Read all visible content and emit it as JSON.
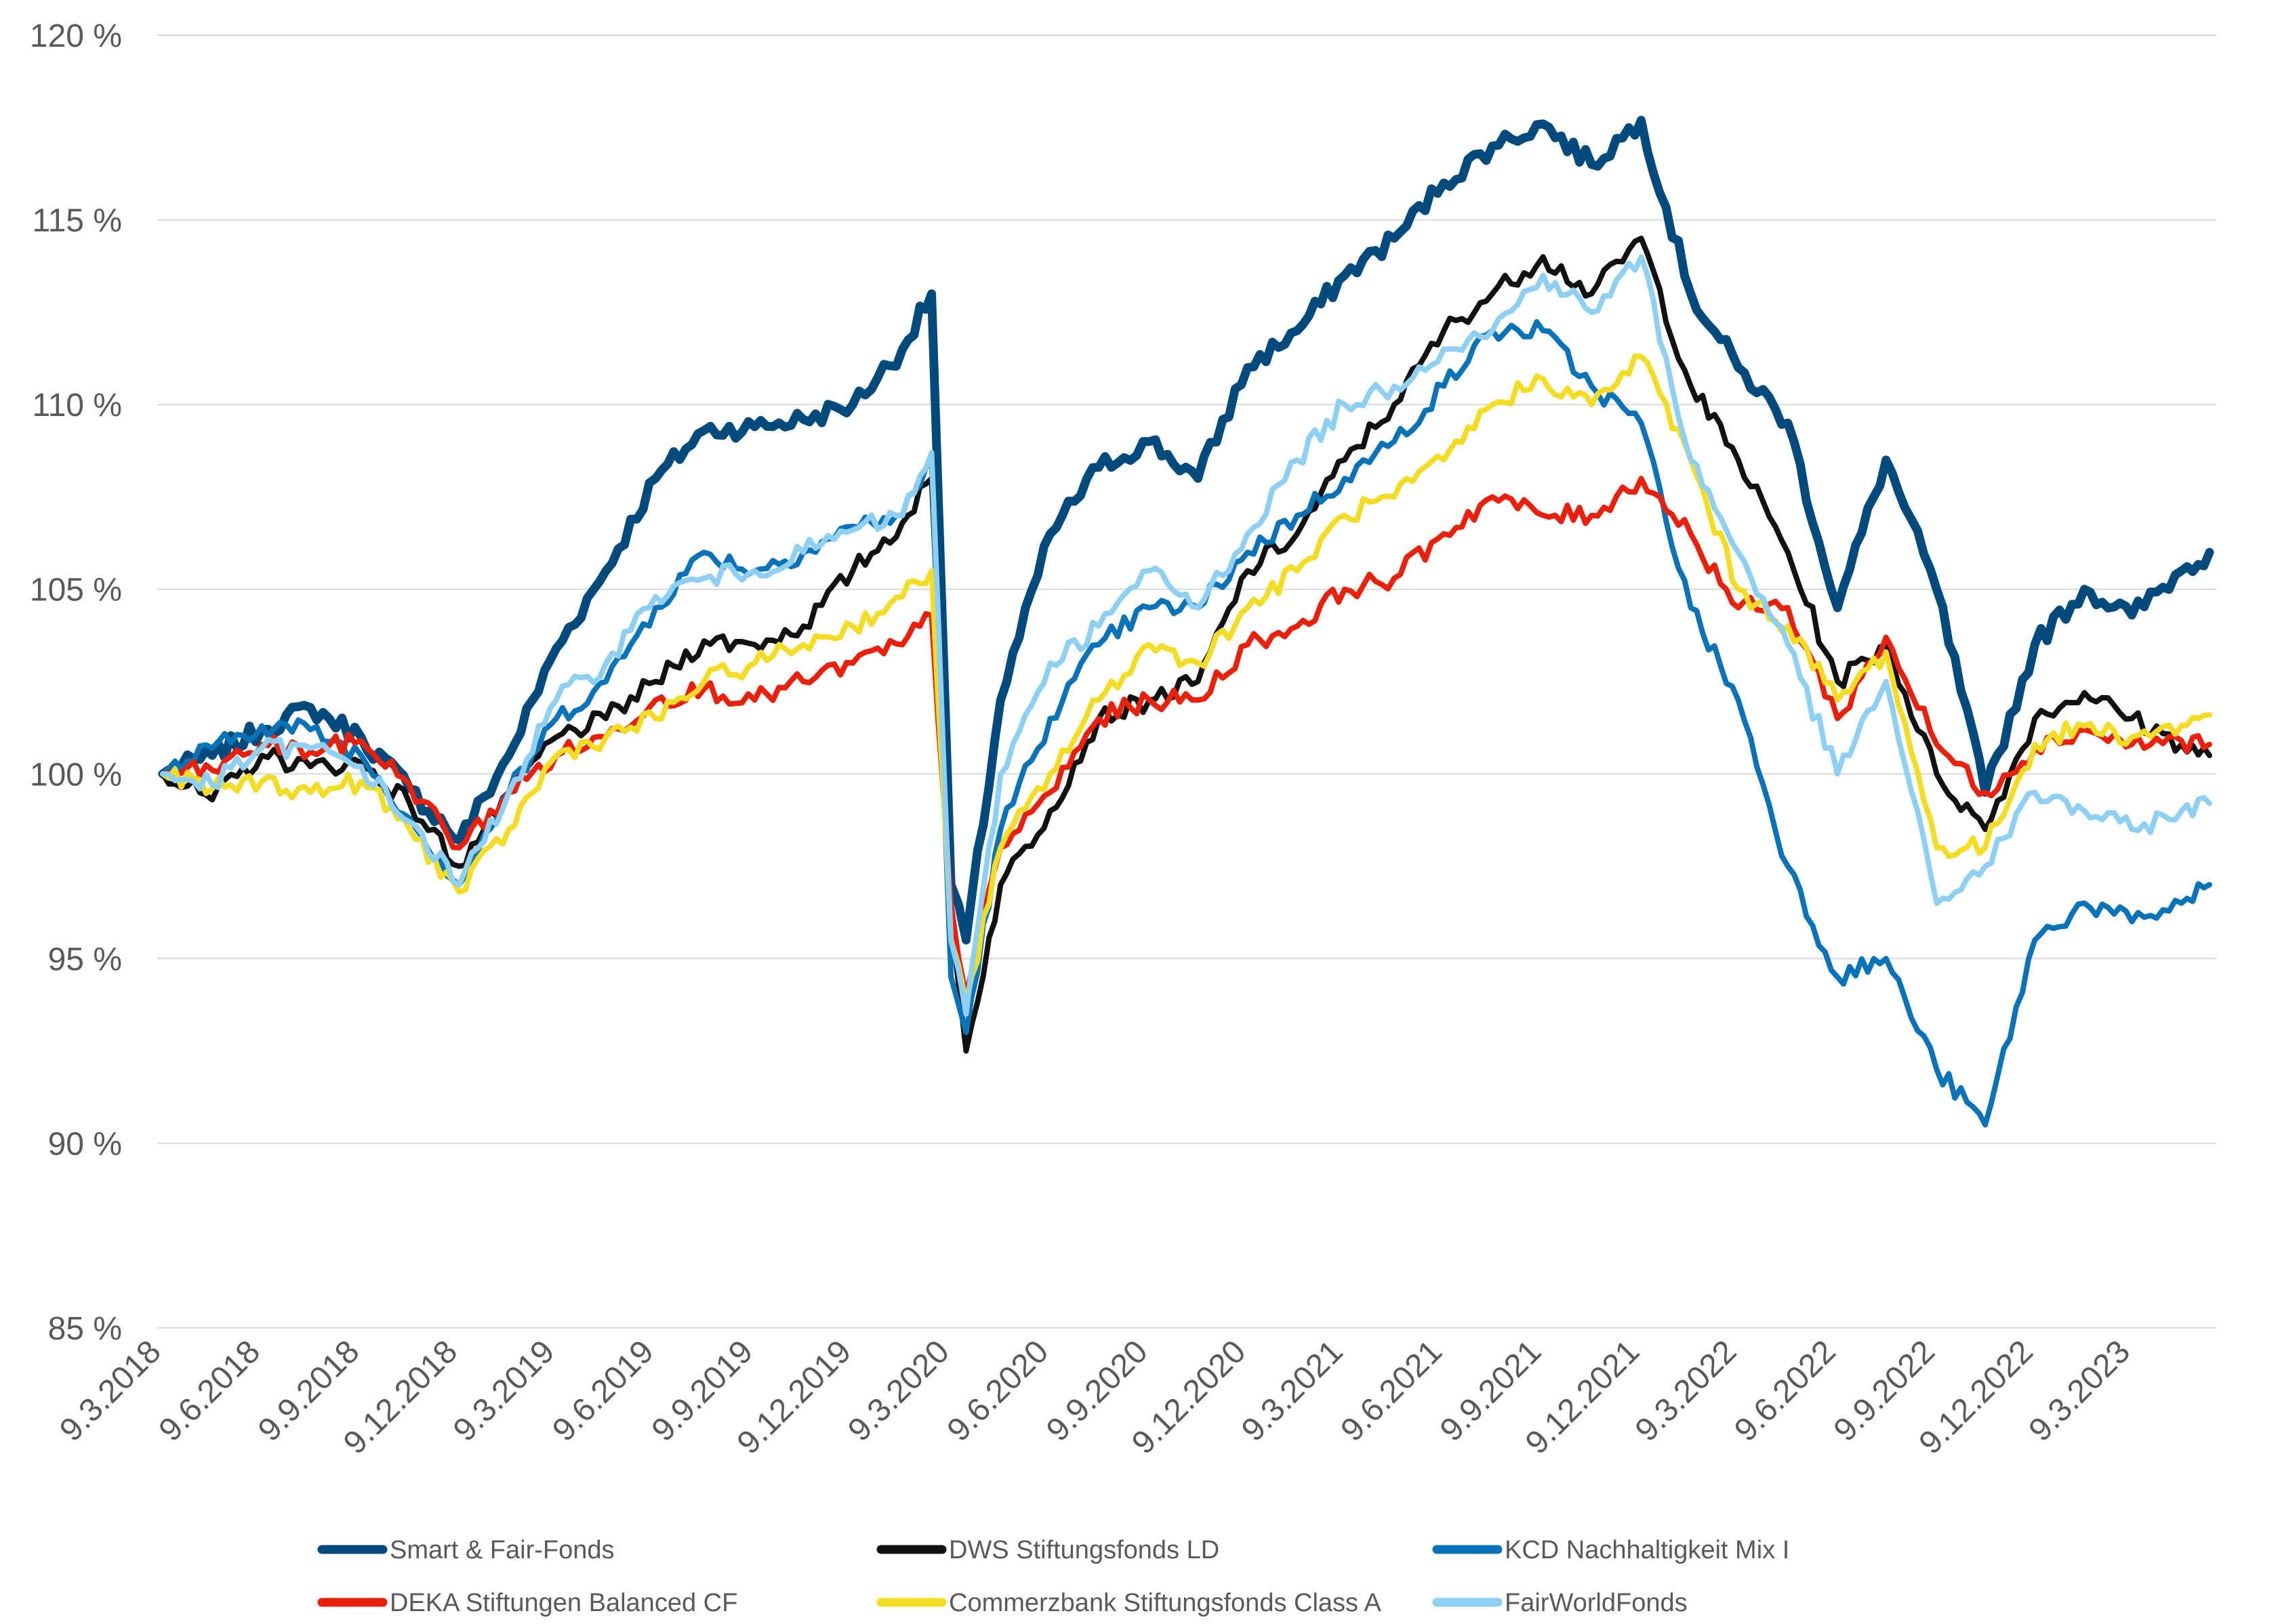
{
  "chart_data": {
    "type": "line",
    "title": "",
    "xlabel": "",
    "ylabel": "",
    "ylim": [
      85,
      120
    ],
    "y_ticks": [
      "85 %",
      "90 %",
      "95 %",
      "100 %",
      "105 %",
      "110 %",
      "115 %",
      "120 %"
    ],
    "y_tick_values": [
      85,
      90,
      95,
      100,
      105,
      110,
      115,
      120
    ],
    "x_ticks": [
      "9.3.2018",
      "9.6.2018",
      "9.9.2018",
      "9.12.2018",
      "9.3.2019",
      "9.6.2019",
      "9.9.2019",
      "9.12.2019",
      "9.3.2020",
      "9.6.2020",
      "9.9.2020",
      "9.12.2020",
      "9.3.2021",
      "9.6.2021",
      "9.9.2021",
      "9.12.2021",
      "9.3.2022",
      "9.6.2022",
      "9.9.2022",
      "9.12.2022",
      "9.3.2023"
    ],
    "x": [
      "2018-03-09",
      "2018-04-24",
      "2018-06-09",
      "2018-07-24",
      "2018-09-09",
      "2018-10-24",
      "2018-12-09",
      "2019-01-24",
      "2019-03-09",
      "2019-04-24",
      "2019-06-09",
      "2019-07-24",
      "2019-09-09",
      "2019-10-24",
      "2019-12-09",
      "2020-01-24",
      "2020-02-20",
      "2020-03-09",
      "2020-03-23",
      "2020-04-24",
      "2020-06-09",
      "2020-07-24",
      "2020-09-09",
      "2020-10-24",
      "2020-12-09",
      "2021-01-24",
      "2021-03-09",
      "2021-04-24",
      "2021-06-09",
      "2021-07-24",
      "2021-09-09",
      "2021-10-24",
      "2021-12-09",
      "2022-01-24",
      "2022-03-09",
      "2022-04-24",
      "2022-06-09",
      "2022-07-24",
      "2022-09-09",
      "2022-10-24",
      "2022-12-09",
      "2023-01-24",
      "2023-03-09",
      "2023-04-24",
      "2023-05-20"
    ],
    "grid": true,
    "legend_position": "bottom",
    "series": [
      {
        "name": "Smart & Fair-Fonds",
        "color": "#004a7c",
        "width": 13,
        "values": [
          100.0,
          100.5,
          101.2,
          101.8,
          101.0,
          99.6,
          98.2,
          100.5,
          103.4,
          105.5,
          108.0,
          109.3,
          109.4,
          109.6,
          110.0,
          111.5,
          113.0,
          97.0,
          95.5,
          102.0,
          106.5,
          108.3,
          109.0,
          108.0,
          111.0,
          112.0,
          113.5,
          114.5,
          116.0,
          117.0,
          117.6,
          116.5,
          117.7,
          113.0,
          111.0,
          109.5,
          104.5,
          108.5,
          105.0,
          99.5,
          103.5,
          105.0,
          104.3,
          105.5,
          106.0
        ]
      },
      {
        "name": "DWS Stiftungsfonds LD",
        "color": "#111111",
        "width": 8,
        "values": [
          100.0,
          99.3,
          100.5,
          100.2,
          100.3,
          99.2,
          97.5,
          99.5,
          101.0,
          101.5,
          102.5,
          103.6,
          103.5,
          104.0,
          105.5,
          106.8,
          108.0,
          96.0,
          92.5,
          97.0,
          99.0,
          101.5,
          102.0,
          102.5,
          105.5,
          106.5,
          108.5,
          110.0,
          112.0,
          113.0,
          114.0,
          113.0,
          114.5,
          110.5,
          108.5,
          106.0,
          102.5,
          103.5,
          100.0,
          98.5,
          101.5,
          102.2,
          101.5,
          100.8,
          100.5
        ]
      },
      {
        "name": "KCD Nachhaltigkeit Mix I",
        "color": "#0a73b8",
        "width": 8,
        "values": [
          100.0,
          100.7,
          101.3,
          101.2,
          100.5,
          98.8,
          97.0,
          99.5,
          101.5,
          102.5,
          104.5,
          106.0,
          105.5,
          106.0,
          106.7,
          107.0,
          108.5,
          94.5,
          93.0,
          98.5,
          101.5,
          103.5,
          104.5,
          104.5,
          106.0,
          107.0,
          108.0,
          109.0,
          110.5,
          112.0,
          112.0,
          110.5,
          109.5,
          104.5,
          102.0,
          97.5,
          94.5,
          95.0,
          92.0,
          90.5,
          95.5,
          96.5,
          96.0,
          96.5,
          97.0
        ]
      },
      {
        "name": "DEKA Stiftungen Balanced CF",
        "color": "#e8200c",
        "width": 8,
        "values": [
          100.0,
          100.1,
          100.8,
          100.6,
          100.9,
          99.7,
          98.0,
          99.5,
          100.5,
          101.0,
          102.0,
          102.3,
          102.0,
          102.5,
          103.0,
          103.5,
          104.3,
          96.5,
          94.0,
          98.0,
          99.5,
          101.5,
          102.0,
          102.0,
          103.5,
          104.0,
          105.0,
          105.3,
          106.5,
          107.5,
          107.0,
          107.0,
          108.0,
          106.5,
          104.5,
          104.5,
          101.5,
          103.7,
          100.8,
          99.5,
          100.7,
          101.2,
          100.8,
          100.9,
          100.8
        ]
      },
      {
        "name": "Commerzbank Stiftungsfonds Class A",
        "color": "#f2dc26",
        "width": 8,
        "values": [
          100.0,
          99.6,
          99.8,
          99.5,
          99.8,
          98.5,
          96.8,
          98.5,
          100.5,
          101.0,
          101.5,
          102.5,
          103.0,
          103.5,
          104.0,
          104.8,
          105.5,
          95.5,
          93.8,
          98.0,
          100.0,
          102.0,
          103.5,
          103.0,
          104.5,
          105.5,
          107.0,
          107.5,
          108.5,
          110.0,
          110.7,
          110.0,
          111.3,
          108.5,
          105.0,
          104.0,
          102.0,
          103.3,
          98.0,
          98.0,
          100.8,
          101.3,
          101.0,
          101.3,
          101.6
        ]
      },
      {
        "name": "FairWorldFonds",
        "color": "#8fd0f2",
        "width": 8,
        "values": [
          100.0,
          99.7,
          100.7,
          100.7,
          100.2,
          98.7,
          97.0,
          99.5,
          102.0,
          103.0,
          104.8,
          105.3,
          105.5,
          106.0,
          106.6,
          107.0,
          108.7,
          95.5,
          93.5,
          100.0,
          103.0,
          104.0,
          105.5,
          104.5,
          106.5,
          108.5,
          110.0,
          110.5,
          111.5,
          112.0,
          113.5,
          112.5,
          114.0,
          108.5,
          106.0,
          103.5,
          100.0,
          102.5,
          96.5,
          97.5,
          99.5,
          99.0,
          98.5,
          99.0,
          99.2
        ]
      }
    ]
  }
}
